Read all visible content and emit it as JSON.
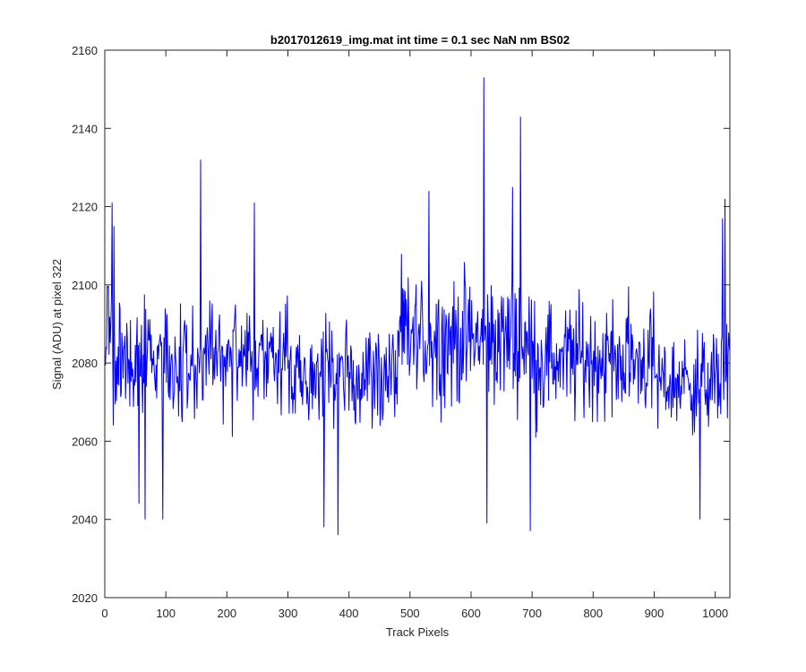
{
  "chart_data": {
    "type": "line",
    "title": "b2017012619_img.mat int time = 0.1 sec  NaN nm BS02",
    "xlabel": "Track Pixels",
    "ylabel": "Signal (ADU) at pixel 322",
    "xlim": [
      0,
      1024
    ],
    "ylim": [
      2020,
      2160
    ],
    "xticks": [
      0,
      100,
      200,
      300,
      400,
      500,
      600,
      700,
      800,
      900,
      1000
    ],
    "yticks": [
      2020,
      2040,
      2060,
      2080,
      2100,
      2120,
      2140,
      2160
    ],
    "grid": false,
    "legend": "none",
    "series": [
      {
        "color": "#0000ff",
        "n_points": 1024,
        "x_start": 1,
        "mean": 2081,
        "noise_amplitude": 13,
        "spikes": [
          {
            "x": 2,
            "y": 2084
          },
          {
            "x": 12,
            "y": 2121
          },
          {
            "x": 15,
            "y": 2115
          },
          {
            "x": 56,
            "y": 2044
          },
          {
            "x": 66,
            "y": 2040
          },
          {
            "x": 95,
            "y": 2040
          },
          {
            "x": 157,
            "y": 2132
          },
          {
            "x": 245,
            "y": 2121
          },
          {
            "x": 359,
            "y": 2038
          },
          {
            "x": 382,
            "y": 2036
          },
          {
            "x": 531,
            "y": 2124
          },
          {
            "x": 621,
            "y": 2153
          },
          {
            "x": 626,
            "y": 2039
          },
          {
            "x": 668,
            "y": 2125
          },
          {
            "x": 681,
            "y": 2143
          },
          {
            "x": 697,
            "y": 2037
          },
          {
            "x": 975,
            "y": 2040
          },
          {
            "x": 1012,
            "y": 2117
          },
          {
            "x": 1016,
            "y": 2122
          }
        ]
      }
    ]
  }
}
